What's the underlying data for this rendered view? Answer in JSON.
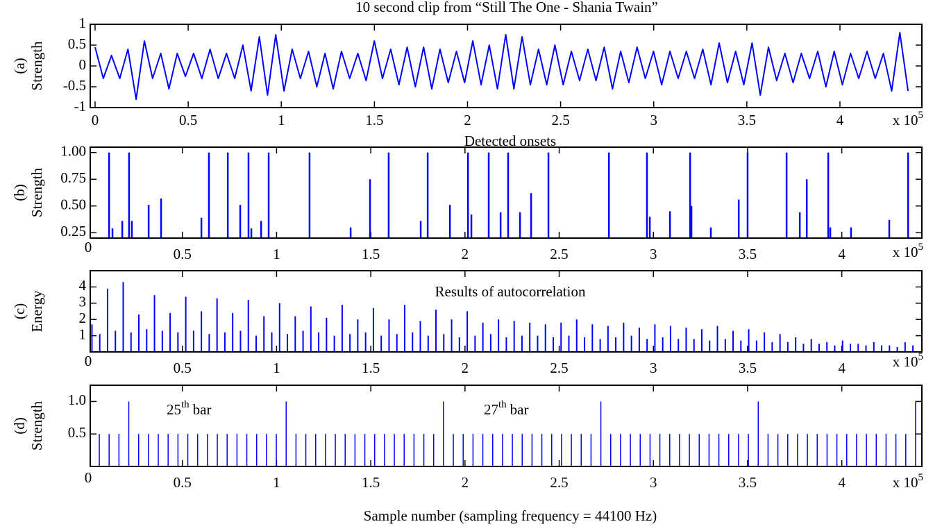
{
  "chart_data": [
    {
      "type": "line",
      "title": "10 second clip from “Still The One - Shania Twain”",
      "panel_label": "(a)",
      "y_label": "Strength",
      "color": "#0000ff",
      "x_scale_label": "x 10",
      "x_scale_exponent": "5",
      "xlim": [
        -2600,
        444000
      ],
      "ylim": [
        -1,
        1
      ],
      "yticks": [
        -1,
        -0.5,
        0,
        0.5,
        1
      ],
      "xticks": [
        0,
        {
          "value": 50000,
          "label": "0.5"
        },
        {
          "value": 100000,
          "label": "1"
        },
        {
          "value": 150000,
          "label": "1.5"
        },
        {
          "value": 200000,
          "label": "2"
        },
        {
          "value": 250000,
          "label": "2.5"
        },
        {
          "value": 300000,
          "label": "3"
        },
        {
          "value": 350000,
          "label": "3.5"
        },
        {
          "value": 400000,
          "label": "4"
        }
      ],
      "x": [
        0,
        4410,
        8820,
        13230,
        17640,
        22050,
        26460,
        30870,
        35280,
        39690,
        44100,
        48510,
        52920,
        57330,
        61740,
        66150,
        70560,
        74970,
        79380,
        83790,
        88200,
        92610,
        97020,
        101430,
        105840,
        110250,
        114660,
        119070,
        123480,
        127890,
        132300,
        136710,
        141120,
        145530,
        149940,
        154350,
        158760,
        163170,
        167580,
        171990,
        176400,
        180810,
        185220,
        189630,
        194040,
        198450,
        202860,
        207270,
        211680,
        216090,
        220500,
        224910,
        229320,
        233730,
        238140,
        242550,
        246960,
        251370,
        255780,
        260190,
        264600,
        269010,
        273420,
        277830,
        282240,
        286650,
        291060,
        295470,
        299880,
        304290,
        308700,
        313110,
        317520,
        321930,
        326340,
        330750,
        335160,
        339570,
        343980,
        348390,
        352800,
        357210,
        361620,
        366030,
        370440,
        374850,
        379260,
        383670,
        388080,
        392490,
        396900,
        401310,
        405720,
        410130,
        414540,
        418950,
        423360,
        427770,
        432180,
        436590
      ],
      "values": [
        0.45,
        -0.3,
        0.25,
        -0.3,
        0.4,
        -0.8,
        0.6,
        -0.3,
        0.3,
        -0.55,
        0.3,
        -0.25,
        0.3,
        -0.3,
        0.4,
        -0.3,
        0.3,
        -0.3,
        0.5,
        -0.6,
        0.7,
        -0.7,
        0.75,
        -0.6,
        0.4,
        -0.3,
        0.35,
        -0.5,
        0.3,
        -0.55,
        0.35,
        -0.3,
        0.3,
        -0.35,
        0.6,
        -0.3,
        0.4,
        -0.45,
        0.45,
        -0.5,
        0.45,
        -0.55,
        0.4,
        -0.4,
        0.35,
        -0.4,
        0.6,
        -0.45,
        0.5,
        -0.55,
        0.75,
        -0.55,
        0.7,
        -0.45,
        0.4,
        -0.45,
        0.5,
        -0.45,
        0.35,
        -0.35,
        0.4,
        -0.35,
        0.45,
        -0.55,
        0.35,
        -0.4,
        0.45,
        -0.3,
        0.35,
        -0.45,
        0.35,
        -0.3,
        0.35,
        -0.3,
        0.4,
        -0.45,
        0.55,
        -0.4,
        0.35,
        -0.45,
        0.55,
        -0.7,
        0.45,
        -0.35,
        0.3,
        -0.4,
        0.3,
        -0.3,
        0.35,
        -0.5,
        0.35,
        -0.45,
        0.3,
        -0.3,
        0.35,
        -0.3,
        0.3,
        -0.6,
        0.8,
        -0.6
      ]
    },
    {
      "type": "stem",
      "title": "Detected onsets",
      "panel_label": "(b)",
      "y_label": "Strength",
      "color": "#0000ff",
      "x_scale_label": "x 10",
      "x_scale_exponent": "5",
      "xlim": [
        1100,
        442500
      ],
      "ylim": [
        0.2,
        1.05
      ],
      "yticks": [
        0.25,
        {
          "value": 0.5,
          "label": "0.50"
        },
        0.75,
        {
          "value": 1,
          "label": "1.00"
        }
      ],
      "xticks": [
        0,
        {
          "value": 50000,
          "label": "0.5"
        },
        {
          "value": 100000,
          "label": "1"
        },
        {
          "value": 150000,
          "label": "1.5"
        },
        {
          "value": 200000,
          "label": "2"
        },
        {
          "value": 250000,
          "label": "2.5"
        },
        {
          "value": 300000,
          "label": "3"
        },
        {
          "value": 350000,
          "label": "3.5"
        },
        {
          "value": 400000,
          "label": "4"
        }
      ],
      "x": [
        11100,
        12900,
        18100,
        21700,
        23200,
        32100,
        38700,
        60100,
        64100,
        74100,
        80700,
        85100,
        86600,
        91800,
        95800,
        117500,
        139300,
        149600,
        159500,
        176500,
        180200,
        192000,
        201600,
        203400,
        212600,
        218900,
        222900,
        229200,
        235100,
        244300,
        276400,
        296600,
        298100,
        308800,
        319500,
        320200,
        330500,
        345300,
        350000,
        370700,
        377700,
        381400,
        392800,
        393900,
        404900,
        425200,
        435200
      ],
      "values": [
        1.0,
        0.29,
        0.36,
        1.0,
        0.36,
        0.51,
        0.57,
        0.39,
        1.0,
        1.0,
        0.51,
        1.0,
        0.29,
        0.36,
        1.0,
        1.0,
        0.3,
        0.75,
        1.0,
        0.36,
        1.0,
        0.51,
        1.0,
        0.42,
        1.0,
        0.44,
        1.0,
        0.44,
        0.62,
        1.0,
        1.0,
        1.0,
        0.4,
        0.45,
        1.0,
        0.5,
        0.3,
        0.56,
        1.0,
        1.0,
        0.44,
        0.75,
        1.0,
        0.3,
        0.3,
        0.37,
        1.0
      ]
    },
    {
      "type": "stem",
      "title": "Results of autocorrelation",
      "panel_label": "(c)",
      "y_label": "Energy",
      "color": "#0000ff",
      "x_scale_label": "x 10",
      "x_scale_exponent": "5",
      "xlim": [
        1100,
        442500
      ],
      "ylim": [
        0,
        5
      ],
      "yticks": [
        1,
        2,
        3,
        4
      ],
      "xticks": [
        0,
        {
          "value": 50000,
          "label": "0.5"
        },
        {
          "value": 100000,
          "label": "1"
        },
        {
          "value": 150000,
          "label": "1.5"
        },
        {
          "value": 200000,
          "label": "2"
        },
        {
          "value": 250000,
          "label": "2.5"
        },
        {
          "value": 300000,
          "label": "3"
        },
        {
          "value": 350000,
          "label": "3.5"
        },
        {
          "value": 400000,
          "label": "4"
        }
      ],
      "x": [
        2000,
        6150,
        10300,
        14450,
        18600,
        22750,
        26900,
        31050,
        35200,
        39350,
        43500,
        47650,
        51800,
        55950,
        60100,
        64250,
        68400,
        72550,
        76700,
        80850,
        85000,
        89150,
        93300,
        97450,
        101600,
        105750,
        109900,
        114050,
        118200,
        122350,
        126500,
        130650,
        134800,
        138950,
        143100,
        147250,
        151400,
        155550,
        159700,
        163850,
        168000,
        172150,
        176300,
        180450,
        184600,
        188750,
        192900,
        197050,
        201200,
        205350,
        209500,
        213650,
        217800,
        221950,
        226100,
        230250,
        234400,
        238550,
        242700,
        246850,
        251000,
        255150,
        259300,
        263450,
        267600,
        271750,
        275900,
        280050,
        284200,
        288350,
        292500,
        296650,
        300800,
        304950,
        309100,
        313250,
        317400,
        321550,
        325700,
        329850,
        334000,
        338150,
        342300,
        346450,
        350600,
        354750,
        358900,
        363050,
        367200,
        371350,
        375500,
        379650,
        383800,
        387950,
        392100,
        396250,
        400400,
        404550,
        408700,
        412850,
        417000,
        421150,
        425300,
        429450,
        433600,
        437750
      ],
      "values": [
        1.7,
        1.1,
        3.9,
        1.3,
        4.3,
        1.2,
        2.3,
        1.4,
        3.5,
        1.3,
        2.4,
        1.2,
        3.4,
        1.3,
        2.5,
        1.1,
        3.3,
        1.2,
        2.4,
        1.3,
        3.2,
        1.0,
        2.2,
        1.2,
        3.0,
        1.1,
        2.2,
        1.3,
        2.8,
        1.2,
        2.1,
        1.0,
        2.9,
        1.1,
        2.0,
        1.2,
        2.7,
        1.0,
        2.0,
        1.1,
        2.9,
        1.2,
        1.9,
        1.0,
        2.6,
        1.1,
        2.0,
        0.9,
        2.5,
        1.0,
        1.8,
        1.1,
        2.0,
        0.9,
        1.9,
        1.0,
        1.8,
        1.0,
        1.7,
        0.9,
        1.8,
        1.0,
        2.0,
        0.9,
        1.7,
        0.8,
        1.6,
        0.9,
        1.8,
        1.0,
        1.5,
        0.8,
        1.7,
        0.9,
        1.6,
        0.8,
        1.5,
        0.8,
        1.4,
        0.7,
        1.6,
        0.8,
        1.3,
        0.7,
        1.4,
        0.7,
        1.2,
        0.6,
        1.1,
        0.6,
        0.9,
        0.5,
        0.8,
        0.5,
        0.6,
        0.4,
        0.7,
        0.5,
        0.5,
        0.4,
        0.6,
        0.4,
        0.4,
        0.3,
        0.6,
        0.4
      ]
    },
    {
      "type": "stem",
      "panel_label": "(d)",
      "y_label": "Strength",
      "color": "#0000ff",
      "x_scale_label": "x 10",
      "x_scale_exponent": "5",
      "x_label": "Sample number (sampling frequency = 44100 Hz)",
      "annotations": [
        {
          "number": "25",
          "suffix": "th",
          "word": "bar"
        },
        {
          "number": "27",
          "suffix": "th",
          "word": "bar"
        }
      ],
      "xlim": [
        1100,
        442500
      ],
      "ylim": [
        0,
        1.25
      ],
      "yticks": [
        0.5,
        {
          "value": 1,
          "label": "1.0"
        }
      ],
      "xticks": [
        0,
        {
          "value": 50000,
          "label": "0.5"
        },
        {
          "value": 100000,
          "label": "1"
        },
        {
          "value": 150000,
          "label": "1.5"
        },
        {
          "value": 200000,
          "label": "2"
        },
        {
          "value": 250000,
          "label": "2.5"
        },
        {
          "value": 300000,
          "label": "3"
        },
        {
          "value": 350000,
          "label": "3.5"
        },
        {
          "value": 400000,
          "label": "4"
        }
      ],
      "x": [
        5900,
        11120,
        16340,
        21560,
        26780,
        32000,
        37220,
        42440,
        47660,
        52880,
        58100,
        63320,
        68540,
        73760,
        78980,
        84200,
        89420,
        94640,
        99860,
        105080,
        110300,
        115520,
        120740,
        125960,
        131180,
        136400,
        141620,
        146840,
        152060,
        157280,
        162500,
        167720,
        172940,
        178160,
        183380,
        188600,
        193820,
        199040,
        204260,
        209480,
        214700,
        219920,
        225140,
        230360,
        235580,
        240800,
        246020,
        251240,
        256460,
        261680,
        266900,
        272120,
        277340,
        282560,
        287780,
        293000,
        298220,
        303440,
        308660,
        313880,
        319100,
        324320,
        329540,
        334760,
        339980,
        345200,
        350420,
        355640,
        360860,
        366080,
        371300,
        376520,
        381740,
        386960,
        392180,
        397400,
        402620,
        407840,
        413060,
        418280,
        423500,
        428720,
        433940,
        439160
      ],
      "values": [
        0.5,
        0.5,
        0.5,
        1.0,
        0.5,
        0.5,
        0.5,
        0.5,
        0.5,
        0.5,
        0.5,
        0.5,
        0.5,
        0.5,
        0.5,
        0.5,
        0.5,
        0.5,
        0.5,
        1.0,
        0.5,
        0.5,
        0.5,
        0.5,
        0.5,
        0.5,
        0.5,
        0.5,
        0.5,
        0.5,
        0.5,
        0.5,
        0.5,
        0.5,
        0.5,
        1.0,
        0.5,
        0.5,
        0.5,
        0.5,
        0.5,
        0.5,
        0.5,
        0.5,
        0.5,
        0.5,
        0.5,
        0.5,
        0.5,
        0.5,
        0.5,
        1.0,
        0.5,
        0.5,
        0.5,
        0.5,
        0.5,
        0.5,
        0.5,
        0.5,
        0.5,
        0.5,
        0.5,
        0.5,
        0.5,
        0.5,
        0.5,
        1.0,
        0.5,
        0.5,
        0.5,
        0.5,
        0.5,
        0.5,
        0.5,
        0.5,
        0.5,
        0.5,
        0.5,
        0.5,
        0.5,
        0.5,
        0.5,
        1.0
      ]
    }
  ]
}
